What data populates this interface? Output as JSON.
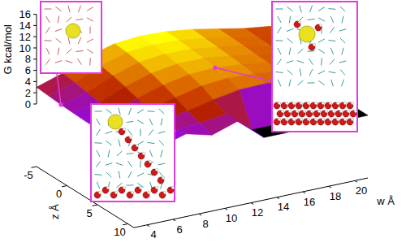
{
  "chart_data": {
    "type": "surface",
    "x_label": "w Å",
    "y_label": "z Å",
    "z_label": "G kcal/mol",
    "x": [
      3,
      5,
      7,
      9,
      11,
      13,
      15,
      17,
      19,
      21
    ],
    "y": [
      -5,
      -3,
      -1,
      1,
      3,
      5,
      7,
      9,
      11
    ],
    "values": [
      [
        3.0,
        4.5,
        6.5,
        7.8,
        8.2,
        8.0,
        7.4,
        6.5,
        5.6,
        5.0
      ],
      [
        2.8,
        4.2,
        6.2,
        7.6,
        8.0,
        7.8,
        7.2,
        6.4,
        5.5,
        4.9
      ],
      [
        2.6,
        3.8,
        5.8,
        7.2,
        7.7,
        7.6,
        7.0,
        6.3,
        5.4,
        4.8
      ],
      [
        2.5,
        3.4,
        5.2,
        6.6,
        7.3,
        7.3,
        6.8,
        6.1,
        5.3,
        4.8
      ],
      [
        2.4,
        3.0,
        4.5,
        5.9,
        6.8,
        7.0,
        6.6,
        6.0,
        5.2,
        4.7
      ],
      [
        2.4,
        2.8,
        3.8,
        5.0,
        6.1,
        6.5,
        6.3,
        5.8,
        5.1,
        4.6
      ],
      [
        2.5,
        2.7,
        3.2,
        4.0,
        5.0,
        5.8,
        5.9,
        5.5,
        5.0,
        4.5
      ],
      [
        2.8,
        2.6,
        2.8,
        3.2,
        3.8,
        0,
        0,
        0,
        0,
        0
      ],
      [
        4.0,
        2.2,
        3.6,
        2.4,
        3.9,
        0,
        0,
        0,
        0,
        0
      ]
    ],
    "xlim": [
      3,
      21
    ],
    "xticks": [
      4,
      6,
      8,
      10,
      12,
      14,
      16,
      18,
      20
    ],
    "ylim": [
      -5,
      11
    ],
    "yticks": [
      -5,
      0,
      5,
      10
    ],
    "zlim": [
      0,
      16
    ],
    "zticks": [
      0,
      2,
      4,
      6,
      8,
      10,
      12,
      14,
      16
    ],
    "color_range": [
      0,
      8
    ]
  }
}
